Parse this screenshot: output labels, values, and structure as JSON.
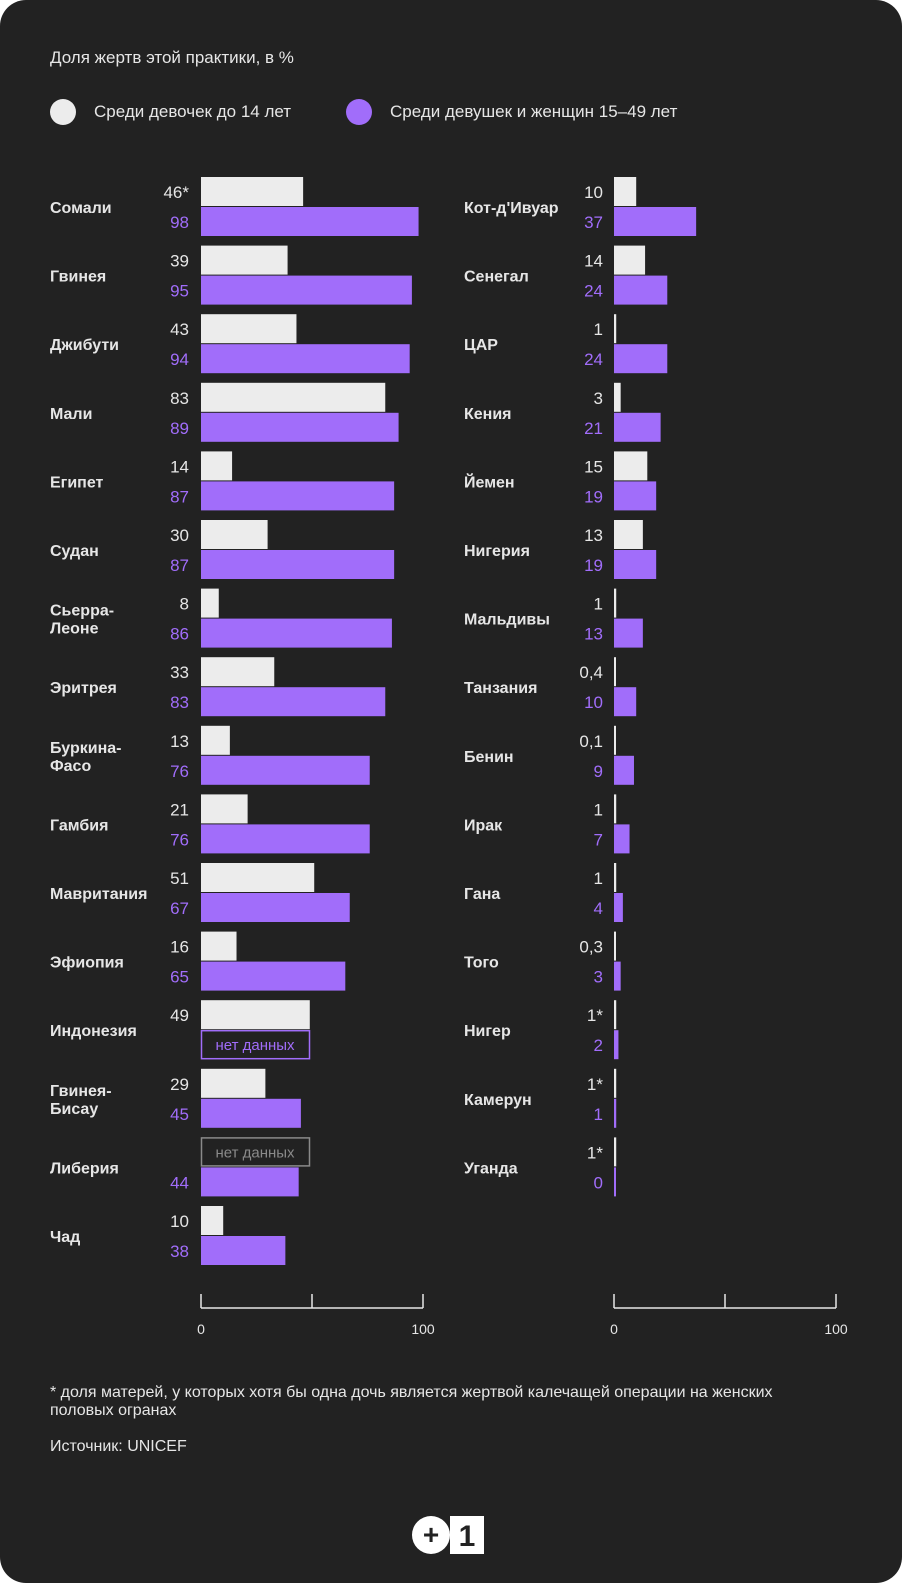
{
  "subtitle": "Доля жертв этой практики, в %",
  "legend": [
    {
      "label": "Среди девочек до 14 лет",
      "color": "#ececec"
    },
    {
      "label": "Среди девушек и женщин 15–49 лет",
      "color": "#a16dfa"
    }
  ],
  "colors": {
    "girls": "#ececec",
    "women": "#a16dfa",
    "text": "#e6e6e6",
    "background": "#222222",
    "no_data_border": "#8a8a8a"
  },
  "no_data_label": "нет данных",
  "footnote": "* доля матерей, у которых хотя бы одна дочь является жертвой калечащей операции на женских половых огранах",
  "source": "Источник: UNICEF",
  "logo": {
    "left": "+",
    "right": "1"
  },
  "chart_data": [
    {
      "type": "bar",
      "orientation": "horizontal",
      "xlim": [
        0,
        100
      ],
      "ticks": [
        "0",
        "100"
      ],
      "series": [
        {
          "name": "Среди девочек до 14 лет",
          "values": [
            46,
            39,
            43,
            83,
            14,
            30,
            8,
            33,
            13,
            21,
            51,
            16,
            49,
            29,
            null,
            10
          ],
          "labels": [
            "46*",
            "39",
            "43",
            "83",
            "14",
            "30",
            "8",
            "33",
            "13",
            "21",
            "51",
            "16",
            "49",
            "29",
            "",
            "10"
          ]
        },
        {
          "name": "Среди девушек и женщин 15–49 лет",
          "values": [
            98,
            95,
            94,
            89,
            87,
            87,
            86,
            83,
            76,
            76,
            67,
            65,
            null,
            45,
            44,
            38
          ],
          "labels": [
            "98",
            "95",
            "94",
            "89",
            "87",
            "87",
            "86",
            "83",
            "76",
            "76",
            "67",
            "65",
            "",
            "45",
            "44",
            "38"
          ]
        }
      ],
      "categories": [
        [
          "Сомали"
        ],
        [
          "Гвинея"
        ],
        [
          "Джибути"
        ],
        [
          "Мали"
        ],
        [
          "Египет"
        ],
        [
          "Судан"
        ],
        [
          "Сьерра-",
          "Леоне"
        ],
        [
          "Эритрея"
        ],
        [
          "Буркина-",
          "Фасо"
        ],
        [
          "Гамбия"
        ],
        [
          "Мавритания"
        ],
        [
          "Эфиопия"
        ],
        [
          "Индонезия"
        ],
        [
          "Гвинея-",
          "Бисау"
        ],
        [
          "Либерия"
        ],
        [
          "Чад"
        ]
      ]
    },
    {
      "type": "bar",
      "orientation": "horizontal",
      "xlim": [
        0,
        100
      ],
      "ticks": [
        "0",
        "100"
      ],
      "series": [
        {
          "name": "Среди девочек до 14 лет",
          "values": [
            10,
            14,
            1,
            3,
            15,
            13,
            1,
            0.4,
            0.1,
            1,
            1,
            0.3,
            1,
            1,
            1
          ],
          "labels": [
            "10",
            "14",
            "1",
            "3",
            "15",
            "13",
            "1",
            "0,4",
            "0,1",
            "1",
            "1",
            "0,3",
            "1*",
            "1*",
            "1*"
          ]
        },
        {
          "name": "Среди девушек и женщин 15–49 лет",
          "values": [
            37,
            24,
            24,
            21,
            19,
            19,
            13,
            10,
            9,
            7,
            4,
            3,
            2,
            1,
            0
          ],
          "labels": [
            "37",
            "24",
            "24",
            "21",
            "19",
            "19",
            "13",
            "10",
            "9",
            "7",
            "4",
            "3",
            "2",
            "1",
            "0"
          ]
        }
      ],
      "categories": [
        [
          "Кот-д'Ивуар"
        ],
        [
          "Сенегал"
        ],
        [
          "ЦАР"
        ],
        [
          "Кения"
        ],
        [
          "Йемен"
        ],
        [
          "Нигерия"
        ],
        [
          "Мальдивы"
        ],
        [
          "Танзания"
        ],
        [
          "Бенин"
        ],
        [
          "Ирак"
        ],
        [
          "Гана"
        ],
        [
          "Того"
        ],
        [
          "Нигер"
        ],
        [
          "Камерун"
        ],
        [
          "Уганда"
        ]
      ]
    }
  ]
}
